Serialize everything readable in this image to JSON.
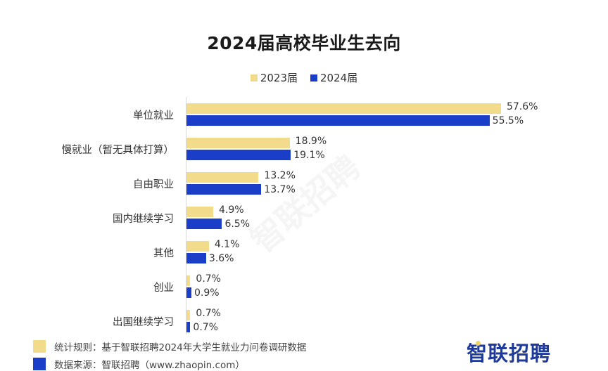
{
  "chart_data": {
    "type": "bar",
    "orientation": "horizontal",
    "title": "2024届高校毕业生去向",
    "xlabel": "",
    "ylabel": "",
    "grid": false,
    "legend_position": "top",
    "categories": [
      "单位就业",
      "慢就业（暂无具体打算）",
      "自由职业",
      "国内继续学习",
      "其他",
      "创业",
      "出国继续学习"
    ],
    "series": [
      {
        "name": "2023届",
        "color": "#f2dc8c",
        "values": [
          57.6,
          18.9,
          13.2,
          4.9,
          4.1,
          0.7,
          0.7
        ],
        "labels": [
          "57.6%",
          "18.9%",
          "13.2%",
          "4.9%",
          "4.1%",
          "0.7%",
          "0.7%"
        ]
      },
      {
        "name": "2024届",
        "color": "#1a3ec8",
        "values": [
          55.5,
          19.1,
          13.7,
          6.5,
          3.6,
          0.9,
          0.7
        ],
        "labels": [
          "55.5%",
          "19.1%",
          "13.7%",
          "6.5%",
          "3.6%",
          "0.9%",
          "0.7%"
        ]
      }
    ],
    "unit": "%"
  },
  "footer": {
    "note_rule": "统计规则：基于智联招聘2024年大学生就业力问卷调研数据",
    "note_source": "数据来源：智联招聘（www.zhaopin.com）",
    "rule_color": "#f2dc8c",
    "source_color": "#1a3ec8"
  },
  "brand": {
    "logo_text": "智联招聘",
    "color": "#1e3a9a"
  },
  "watermark": "智联招聘"
}
